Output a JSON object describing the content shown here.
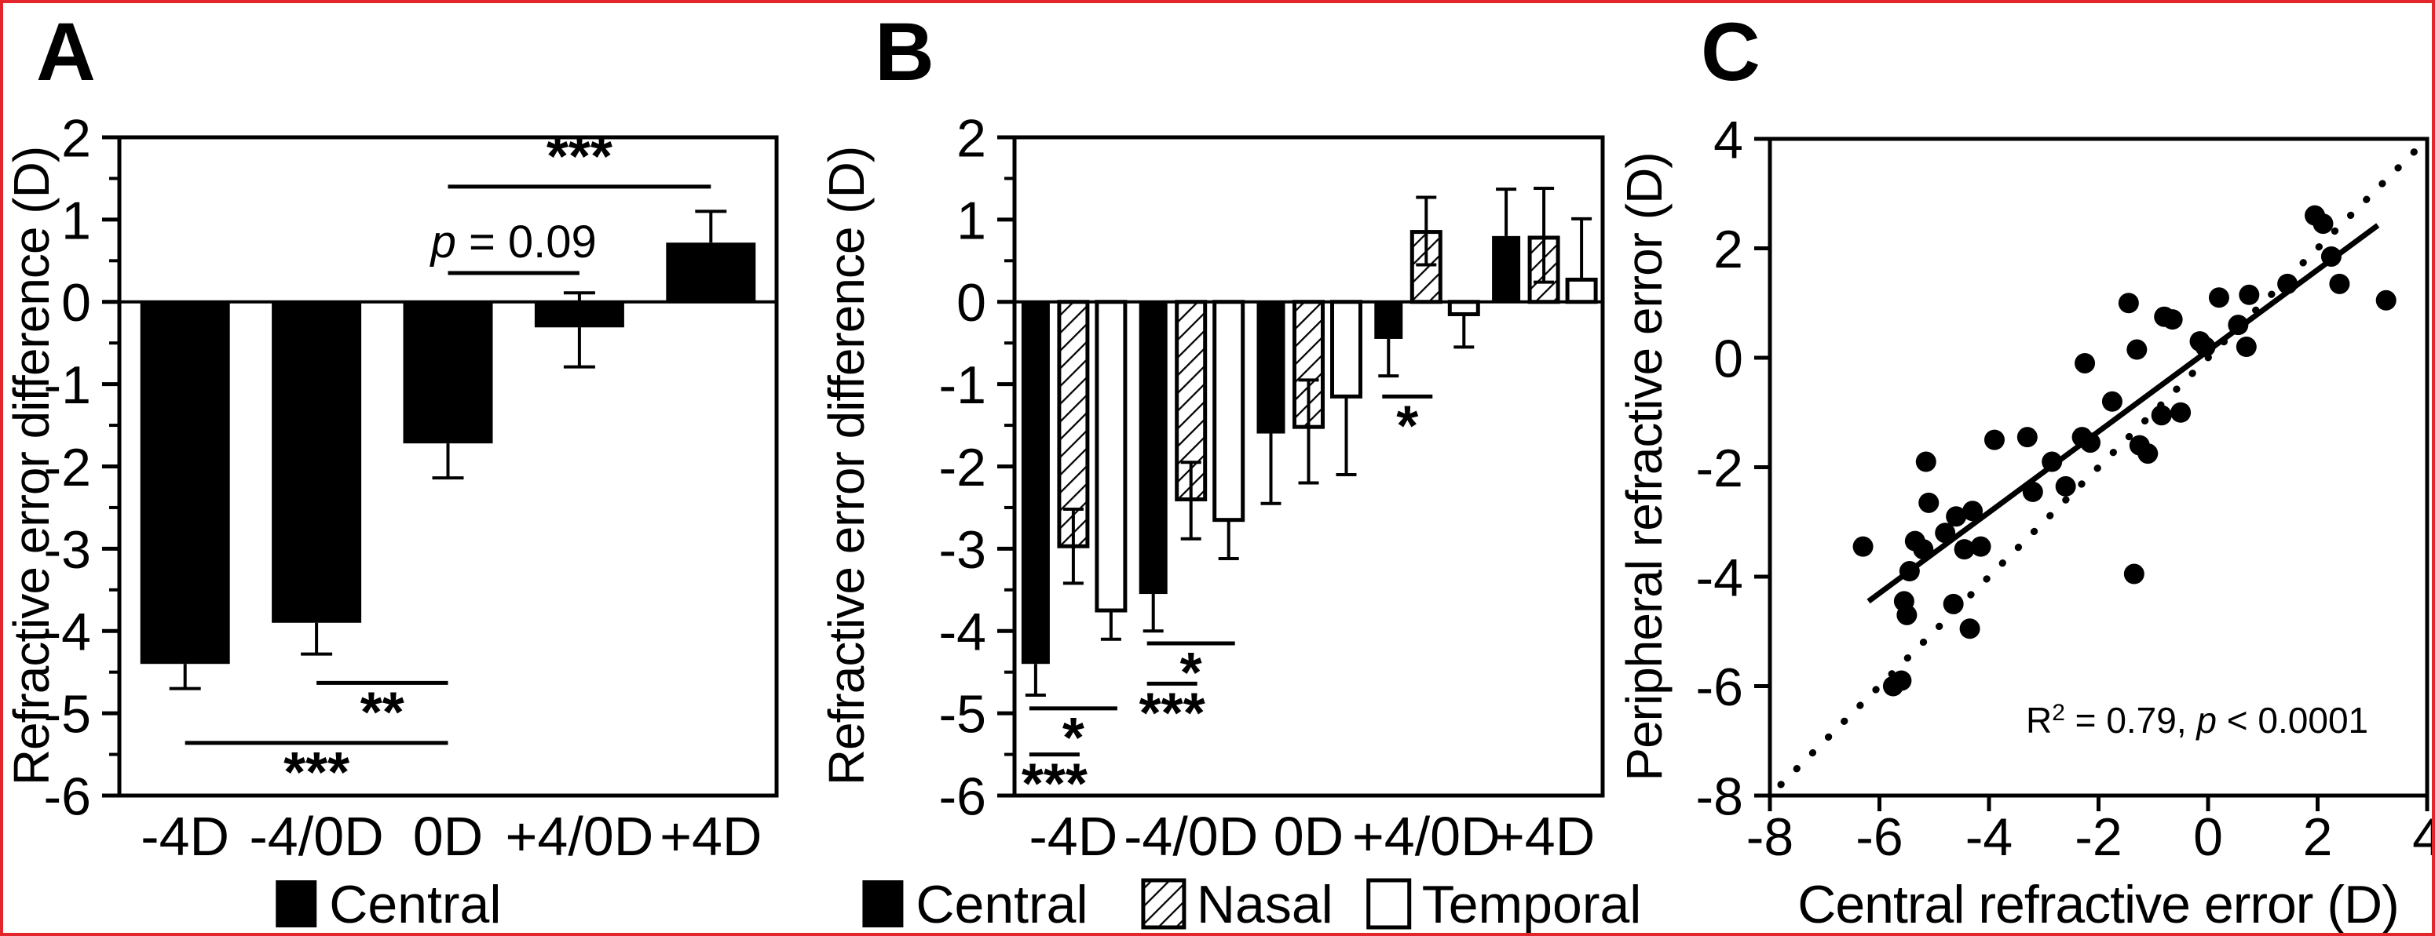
{
  "figure": {
    "background": "#ffffff",
    "border_color": "#e2262b"
  },
  "chart_data": [
    {
      "panel": "A",
      "type": "bar",
      "title": "",
      "xlabel": "",
      "ylabel": "Refractive error difference (D)",
      "categories": [
        "-4D",
        "-4/0D",
        "0D",
        "+4/0D",
        "+4D"
      ],
      "ylim": [
        -6,
        2
      ],
      "ytick_step": 1,
      "yminor_step": 0.5,
      "ytick_labels": [
        "2",
        "1",
        "0",
        "-1",
        "-2",
        "-3",
        "-4",
        "-5",
        "-6"
      ],
      "grid": false,
      "series": [
        {
          "name": "Central",
          "style": "solid-black",
          "values": [
            -4.4,
            -3.9,
            -1.72,
            -0.31,
            0.72
          ],
          "err_up": [
            0,
            0,
            0,
            0.42,
            0.38
          ],
          "err_down": [
            0.3,
            0.38,
            0.42,
            0.48,
            0
          ]
        }
      ],
      "significance": [
        {
          "from_cat": "0D",
          "to_cat": "+4D",
          "y": 1.4,
          "label": "***",
          "side": "above"
        },
        {
          "from_cat": "0D",
          "to_cat": "+4/0D",
          "y": 0.35,
          "label": "p = 0.09",
          "italic_prefix": "p",
          "rest": " = 0.09",
          "side": "above"
        },
        {
          "from_cat": "-4/0D",
          "to_cat": "0D",
          "y": -4.63,
          "label": "**",
          "side": "below"
        },
        {
          "from_cat": "-4D",
          "to_cat": "0D",
          "y": -5.36,
          "label": "***",
          "side": "below"
        }
      ],
      "legend": [
        {
          "name": "Central",
          "style": "solid-black"
        }
      ],
      "legend_position": "bottom"
    },
    {
      "panel": "B",
      "type": "bar",
      "title": "",
      "xlabel": "",
      "ylabel": "Refractive error difference (D)",
      "categories": [
        "-4D",
        "-4/0D",
        "0D",
        "+4/0D",
        "+4D"
      ],
      "ylim": [
        -6,
        2
      ],
      "ytick_step": 1,
      "yminor_step": 0.5,
      "ytick_labels": [
        "2",
        "1",
        "0",
        "-1",
        "-2",
        "-3",
        "-4",
        "-5",
        "-6"
      ],
      "grid": false,
      "series": [
        {
          "name": "Central",
          "style": "solid-black",
          "values": [
            -4.4,
            -3.55,
            -1.6,
            -0.45,
            0.8
          ],
          "err_up": [
            0,
            0,
            0,
            0,
            0.57
          ],
          "err_down": [
            0.38,
            0.45,
            0.85,
            0.45,
            0
          ]
        },
        {
          "name": "Nasal",
          "style": "hatched",
          "values": [
            -2.97,
            -2.4,
            -1.52,
            0.85,
            0.78
          ],
          "err_up": [
            0.45,
            0.45,
            0.57,
            0.42,
            0.6
          ],
          "err_down": [
            0.45,
            0.48,
            0.68,
            0.4,
            0.54
          ]
        },
        {
          "name": "Temporal",
          "style": "white",
          "values": [
            -3.75,
            -2.65,
            -1.15,
            -0.15,
            0.27
          ],
          "err_up": [
            0,
            0,
            0,
            0,
            0.74
          ],
          "err_down": [
            0.35,
            0.47,
            0.95,
            0.4,
            0
          ]
        }
      ],
      "significance": [
        {
          "cat": "-4D",
          "from_series": "Central",
          "to_series": "Temporal",
          "y": -4.94,
          "label": "*",
          "side": "below"
        },
        {
          "cat": "-4D",
          "from_series": "Central",
          "to_series": "Nasal",
          "y": -5.5,
          "label": "***",
          "side": "below"
        },
        {
          "cat": "-4/0D",
          "from_series": "Central",
          "to_series": "Temporal",
          "y": -4.15,
          "label": "*",
          "side": "below"
        },
        {
          "cat": "-4/0D",
          "from_series": "Central",
          "to_series": "Nasal",
          "y": -4.64,
          "label": "***",
          "side": "below"
        },
        {
          "cat": "+4/0D",
          "from_series": "Central",
          "to_series": "Nasal",
          "y": -1.15,
          "label": "*",
          "side": "below"
        }
      ],
      "legend": [
        {
          "name": "Central",
          "style": "solid-black"
        },
        {
          "name": "Nasal",
          "style": "hatched"
        },
        {
          "name": "Temporal",
          "style": "white"
        }
      ],
      "legend_position": "bottom"
    },
    {
      "panel": "C",
      "type": "scatter",
      "title": "",
      "xlabel": "Central refractive error (D)",
      "ylabel": "Peripheral refractive error (D)",
      "xlim": [
        -8,
        4
      ],
      "ylim": [
        -8,
        4
      ],
      "xtick_step": 2,
      "ytick_step": 2,
      "xtick_labels": [
        "-8",
        "-6",
        "-4",
        "-2",
        "0",
        "2",
        "4"
      ],
      "ytick_labels": [
        "4",
        "2",
        "0",
        "-2",
        "-4",
        "-6",
        "-8"
      ],
      "grid": false,
      "points": [
        [
          -6.3,
          -3.45
        ],
        [
          -5.75,
          -6.0
        ],
        [
          -5.6,
          -5.9
        ],
        [
          -5.55,
          -4.45
        ],
        [
          -5.5,
          -4.7
        ],
        [
          -5.45,
          -3.9
        ],
        [
          -5.35,
          -3.35
        ],
        [
          -5.2,
          -3.5
        ],
        [
          -5.15,
          -1.9
        ],
        [
          -5.1,
          -2.65
        ],
        [
          -4.8,
          -3.2
        ],
        [
          -4.65,
          -4.5
        ],
        [
          -4.6,
          -2.9
        ],
        [
          -4.45,
          -3.5
        ],
        [
          -4.35,
          -4.95
        ],
        [
          -4.3,
          -2.8
        ],
        [
          -4.15,
          -3.45
        ],
        [
          -3.9,
          -1.5
        ],
        [
          -3.3,
          -1.45
        ],
        [
          -3.2,
          -2.45
        ],
        [
          -2.85,
          -1.9
        ],
        [
          -2.6,
          -2.35
        ],
        [
          -2.3,
          -1.45
        ],
        [
          -2.25,
          -0.1
        ],
        [
          -2.15,
          -1.55
        ],
        [
          -1.75,
          -0.8
        ],
        [
          -1.45,
          1.0
        ],
        [
          -1.35,
          -3.95
        ],
        [
          -1.3,
          0.15
        ],
        [
          -1.25,
          -1.6
        ],
        [
          -1.1,
          -1.75
        ],
        [
          -0.85,
          -1.05
        ],
        [
          -0.8,
          0.75
        ],
        [
          -0.65,
          0.7
        ],
        [
          -0.5,
          -1.0
        ],
        [
          -0.15,
          0.3
        ],
        [
          -0.05,
          0.2
        ],
        [
          0.2,
          1.1
        ],
        [
          0.55,
          0.6
        ],
        [
          0.7,
          0.2
        ],
        [
          0.75,
          1.15
        ],
        [
          1.45,
          1.35
        ],
        [
          1.95,
          2.6
        ],
        [
          2.1,
          2.45
        ],
        [
          2.25,
          1.85
        ],
        [
          2.4,
          1.35
        ],
        [
          3.25,
          1.05
        ]
      ],
      "regression_line": {
        "x1": -6.2,
        "y1": -4.45,
        "x2": 3.1,
        "y2": 2.42,
        "style": "solid"
      },
      "identity_line": {
        "x1": -7.8,
        "y1": -7.8,
        "x2": 3.9,
        "y2": 3.9,
        "style": "dotted"
      },
      "annotation": {
        "base": "R",
        "sup": "2",
        "mid": " = 0.79, ",
        "italic": "p",
        "tail": " < 0.0001",
        "x": -0.2,
        "y": -6.85
      }
    }
  ]
}
